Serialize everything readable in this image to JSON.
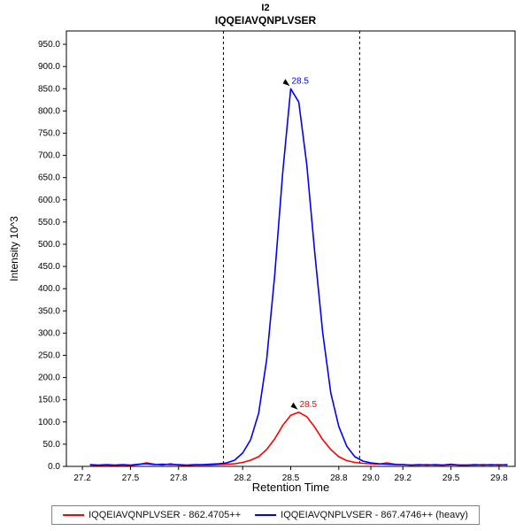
{
  "header": {
    "title": "I2",
    "subtitle": "IQQEIAVQNPLVSER"
  },
  "axes": {
    "x_title": "Retention Time",
    "y_title": "Intensity 10^3"
  },
  "legend": {
    "entries": [
      {
        "label": "IQQEIAVQNPLVSER - 862.4705++",
        "color": "#FF0000"
      },
      {
        "label": "IQQEIAVQNPLVSER - 867.4746++ (heavy)",
        "color": "#0000FF"
      }
    ]
  },
  "chart_data": {
    "type": "line",
    "title": "I2",
    "subtitle": "IQQEIAVQNPLVSER",
    "xlabel": "Retention Time",
    "ylabel": "Intensity 10^3",
    "xlim": [
      27.1,
      29.9
    ],
    "ylim": [
      0,
      980
    ],
    "x_ticks": [
      27.2,
      27.5,
      27.8,
      28.2,
      28.5,
      28.8,
      29.0,
      29.2,
      29.5,
      29.8
    ],
    "y_ticks": [
      0,
      50,
      100,
      150,
      200,
      250,
      300,
      350,
      400,
      450,
      500,
      550,
      600,
      650,
      700,
      750,
      800,
      850,
      900,
      950
    ],
    "grid": false,
    "legend_position": "bottom",
    "peak_boundaries": [
      28.08,
      28.93
    ],
    "x": [
      27.25,
      27.3,
      27.35,
      27.4,
      27.45,
      27.5,
      27.55,
      27.6,
      27.65,
      27.7,
      27.75,
      27.8,
      27.85,
      27.9,
      27.95,
      28.0,
      28.05,
      28.1,
      28.15,
      28.2,
      28.25,
      28.3,
      28.35,
      28.4,
      28.45,
      28.5,
      28.55,
      28.6,
      28.65,
      28.7,
      28.75,
      28.8,
      28.85,
      28.9,
      28.95,
      29.0,
      29.05,
      29.1,
      29.15,
      29.2,
      29.25,
      29.3,
      29.35,
      29.4,
      29.45,
      29.5,
      29.55,
      29.6,
      29.65,
      29.7,
      29.75,
      29.8,
      29.85
    ],
    "series": [
      {
        "name": "IQQEIAVQNPLVSER - 862.4705++",
        "color": "#FF0000",
        "y": [
          3,
          2,
          3,
          2,
          3,
          2,
          4,
          8,
          5,
          3,
          6,
          3,
          2,
          3,
          3,
          3,
          4,
          5,
          6,
          9,
          14,
          22,
          38,
          62,
          92,
          115,
          122,
          112,
          88,
          60,
          38,
          22,
          13,
          9,
          7,
          6,
          5,
          8,
          5,
          4,
          3,
          3,
          4,
          3,
          3,
          5,
          3,
          3,
          3,
          4,
          3,
          4,
          3
        ],
        "annotation": {
          "text": "28.5",
          "x": 28.55,
          "y": 122
        }
      },
      {
        "name": "IQQEIAVQNPLVSER - 867.4746++ (heavy)",
        "color": "#0000FF",
        "y": [
          4,
          3,
          4,
          3,
          4,
          3,
          5,
          6,
          4,
          5,
          4,
          4,
          3,
          4,
          4,
          5,
          6,
          8,
          14,
          30,
          60,
          120,
          240,
          430,
          660,
          850,
          820,
          680,
          480,
          300,
          165,
          90,
          45,
          22,
          12,
          8,
          6,
          5,
          4,
          4,
          3,
          4,
          3,
          4,
          3,
          4,
          3,
          3,
          4,
          3,
          4,
          3,
          4
        ],
        "annotation": {
          "text": "28.5",
          "x": 28.5,
          "y": 850
        }
      }
    ]
  }
}
